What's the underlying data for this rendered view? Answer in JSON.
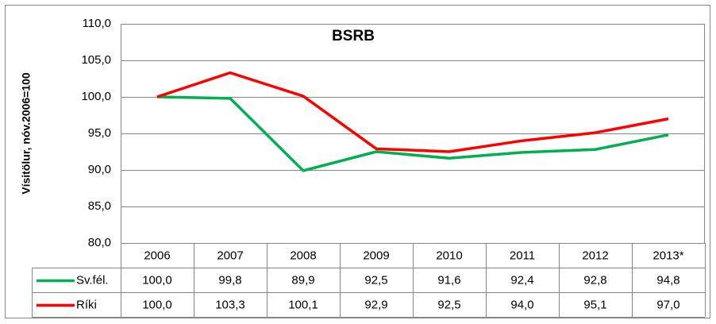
{
  "chart_data": {
    "type": "line",
    "title": "BSRB",
    "ylabel": "Vísitölur, nóv.2006=100",
    "categories": [
      "2006",
      "2007",
      "2008",
      "2009",
      "2010",
      "2011",
      "2012",
      "2013*"
    ],
    "series": [
      {
        "name": "Sv.fél.",
        "color": "#00b050",
        "values": [
          100.0,
          99.8,
          89.9,
          92.5,
          91.6,
          92.4,
          92.8,
          94.8
        ],
        "value_labels": [
          "100,0",
          "99,8",
          "89,9",
          "92,5",
          "91,6",
          "92,4",
          "92,8",
          "94,8"
        ]
      },
      {
        "name": "Ríki",
        "color": "#ff0000",
        "values": [
          100.0,
          103.3,
          100.1,
          92.9,
          92.5,
          94.0,
          95.1,
          97.0
        ],
        "value_labels": [
          "100,0",
          "103,3",
          "100,1",
          "92,9",
          "92,5",
          "94,0",
          "95,1",
          "97,0"
        ]
      }
    ],
    "ylim": [
      80,
      110
    ],
    "yticks": [
      {
        "value": 80,
        "label": "80,0"
      },
      {
        "value": 85,
        "label": "85,0"
      },
      {
        "value": 90,
        "label": "90,0"
      },
      {
        "value": 95,
        "label": "95,0"
      },
      {
        "value": 100,
        "label": "100,0"
      },
      {
        "value": 105,
        "label": "105,0"
      },
      {
        "value": 110,
        "label": "110,0"
      }
    ],
    "grid": true
  }
}
